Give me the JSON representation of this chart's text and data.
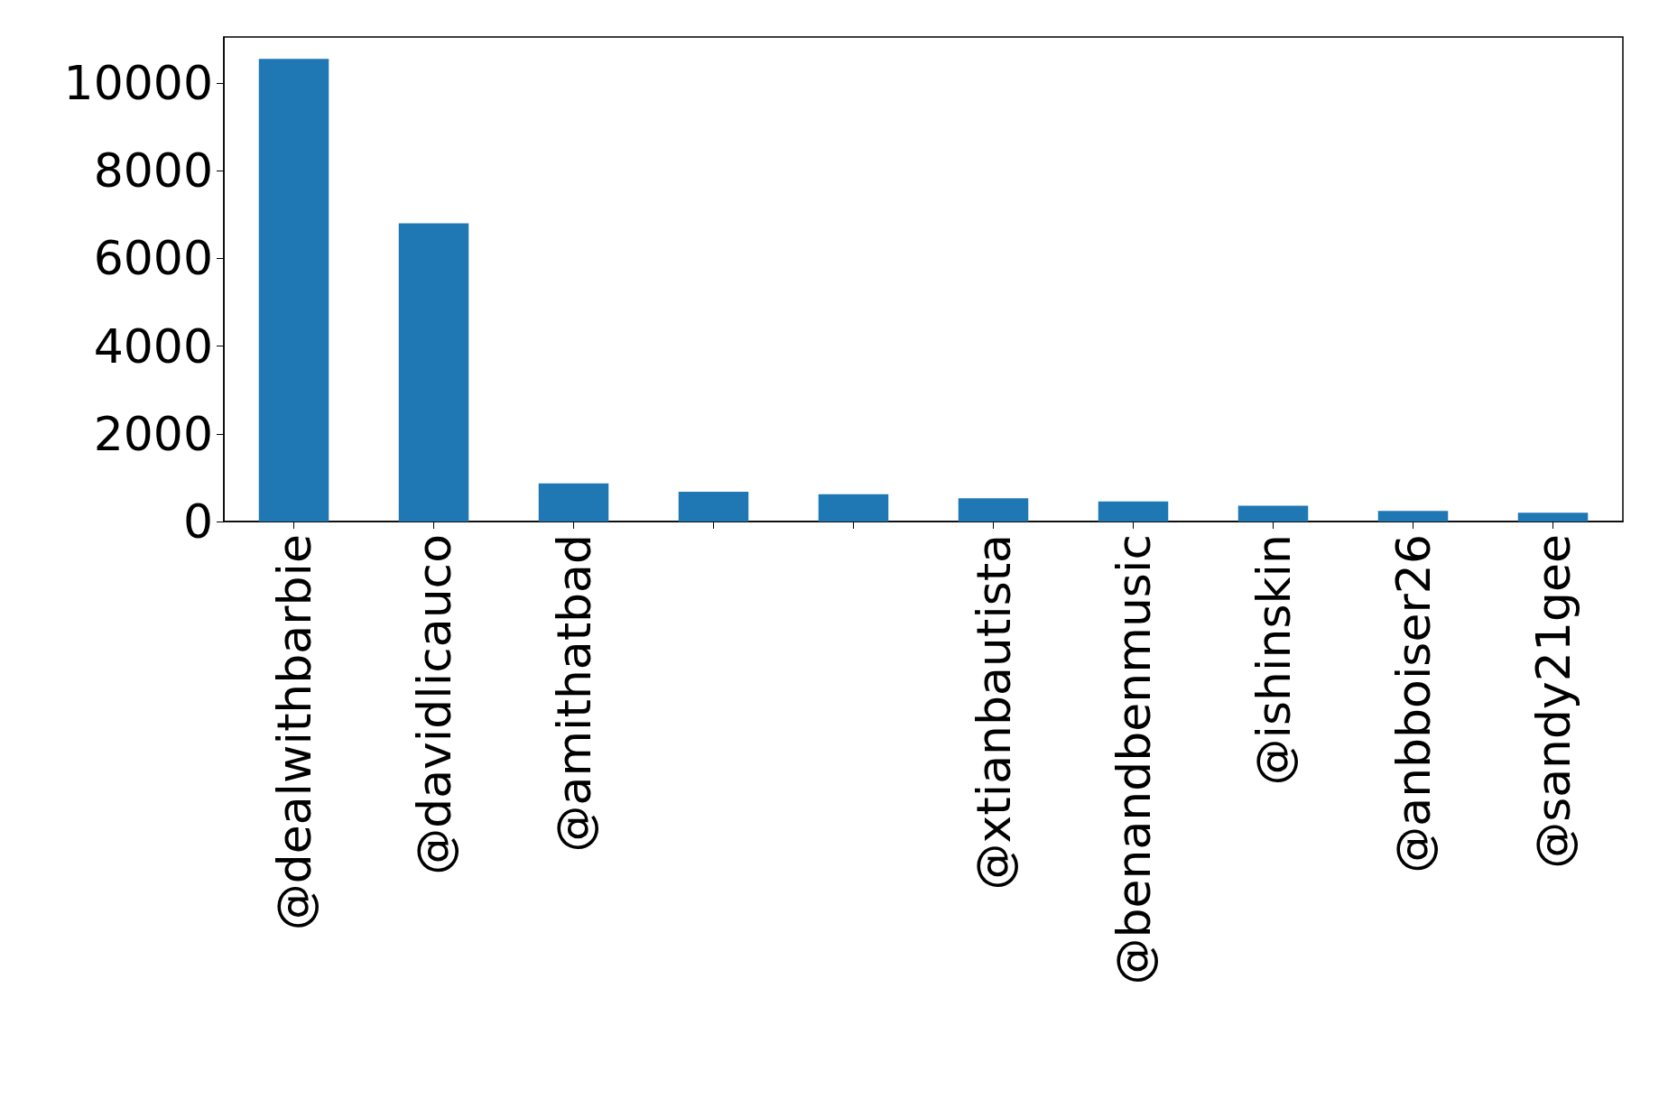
{
  "chart_data": {
    "type": "bar",
    "categories": [
      "@dealwithbarbie",
      "@davidlicauco",
      "@amithatbad",
      null,
      null,
      "@xtianbautista",
      "@benandbenmusic",
      "@ishinskin",
      "@anbboiser26",
      "@sandy21gee"
    ],
    "values": [
      10550,
      6800,
      870,
      680,
      620,
      530,
      460,
      360,
      240,
      200
    ],
    "color": "#1f77b4",
    "ylim": [
      0,
      11050
    ],
    "yticks": [
      0,
      2000,
      4000,
      6000,
      8000,
      10000
    ],
    "grid": false
  }
}
